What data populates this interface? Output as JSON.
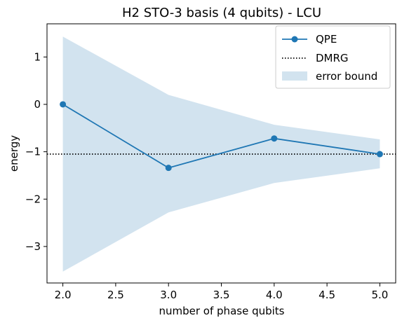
{
  "chart_data": {
    "type": "line",
    "title": "H2 STO-3 basis (4 qubits) - LCU",
    "xlabel": "number of phase qubits",
    "ylabel": "energy",
    "xlim": [
      1.85,
      5.15
    ],
    "ylim": [
      -3.77,
      1.7
    ],
    "x_ticks": [
      2.0,
      2.5,
      3.0,
      3.5,
      4.0,
      4.5,
      5.0
    ],
    "x_tick_labels": [
      "2.0",
      "2.5",
      "3.0",
      "3.5",
      "4.0",
      "4.5",
      "5.0"
    ],
    "y_ticks": [
      1,
      0,
      -1,
      -2,
      -3
    ],
    "y_tick_labels": [
      "1",
      "0",
      "−1",
      "−2",
      "−3"
    ],
    "grid": false,
    "legend_position": "upper right",
    "series": [
      {
        "name": "QPE",
        "kind": "line-marker",
        "color": "#1f77b4",
        "x": [
          2.0,
          3.0,
          4.0,
          5.0
        ],
        "y": [
          0.0,
          -1.34,
          -0.72,
          -1.05
        ]
      },
      {
        "name": "DMRG",
        "kind": "hline-dotted",
        "color": "#000000",
        "y": -1.05
      },
      {
        "name": "error bound",
        "kind": "band",
        "color": "#a6c8e0",
        "x": [
          2.0,
          3.0,
          4.0,
          5.0
        ],
        "upper": [
          1.43,
          0.2,
          -0.43,
          -0.74
        ],
        "lower": [
          -3.53,
          -2.28,
          -1.66,
          -1.35
        ]
      }
    ]
  }
}
